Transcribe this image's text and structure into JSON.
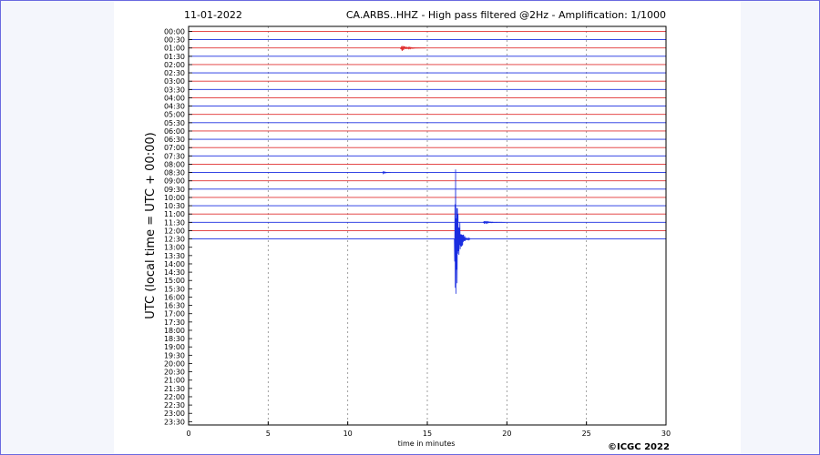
{
  "date": "11-01-2022",
  "title": "CA.ARBS..HHZ - High pass filtered @2Hz - Amplification: 1/1000",
  "ylabel": "UTC (local time = UTC + 00:00)",
  "xlabel": "time in minutes",
  "copyright": "©ICGC 2022",
  "colors": {
    "red": "#e03030",
    "blue": "#1a2de0",
    "grid": "#888888"
  },
  "chart_data": {
    "type": "line",
    "xlabel": "time in minutes",
    "ylabel": "UTC (local time = UTC + 00:00)",
    "xlim": [
      0,
      30
    ],
    "x_ticks": [
      "0",
      "5",
      "10",
      "15",
      "20",
      "25",
      "30"
    ],
    "y_ticks": [
      "00:00",
      "00:30",
      "01:00",
      "01:30",
      "02:00",
      "02:30",
      "03:00",
      "03:30",
      "04:00",
      "04:30",
      "05:00",
      "05:30",
      "06:00",
      "06:30",
      "07:00",
      "07:30",
      "08:00",
      "08:30",
      "09:00",
      "09:30",
      "10:00",
      "10:30",
      "11:00",
      "11:30",
      "12:00",
      "12:30",
      "13:00",
      "13:30",
      "14:00",
      "14:30",
      "15:00",
      "15:30",
      "16:00",
      "16:30",
      "17:00",
      "17:30",
      "18:00",
      "18:30",
      "19:00",
      "19:30",
      "20:00",
      "20:30",
      "21:00",
      "21:30",
      "22:00",
      "22:30",
      "23:00",
      "23:30"
    ],
    "traces": [
      {
        "time": "00:00",
        "color": "red",
        "events": []
      },
      {
        "time": "00:30",
        "color": "blue",
        "events": []
      },
      {
        "time": "01:00",
        "color": "red",
        "events": [
          {
            "t": 13.3,
            "dur": 1.6,
            "amp": 0.45
          }
        ]
      },
      {
        "time": "01:30",
        "color": "blue",
        "events": []
      },
      {
        "time": "02:00",
        "color": "red",
        "events": []
      },
      {
        "time": "02:30",
        "color": "blue",
        "events": []
      },
      {
        "time": "03:00",
        "color": "red",
        "events": []
      },
      {
        "time": "03:30",
        "color": "blue",
        "events": []
      },
      {
        "time": "04:00",
        "color": "red",
        "events": []
      },
      {
        "time": "04:30",
        "color": "blue",
        "events": []
      },
      {
        "time": "05:00",
        "color": "red",
        "events": []
      },
      {
        "time": "05:30",
        "color": "blue",
        "events": []
      },
      {
        "time": "06:00",
        "color": "red",
        "events": []
      },
      {
        "time": "06:30",
        "color": "blue",
        "events": []
      },
      {
        "time": "07:00",
        "color": "red",
        "events": []
      },
      {
        "time": "07:30",
        "color": "blue",
        "events": []
      },
      {
        "time": "08:00",
        "color": "red",
        "events": []
      },
      {
        "time": "08:30",
        "color": "blue",
        "events": [
          {
            "t": 12.2,
            "dur": 0.5,
            "amp": 0.2
          }
        ]
      },
      {
        "time": "09:00",
        "color": "red",
        "events": []
      },
      {
        "time": "09:30",
        "color": "blue",
        "events": []
      },
      {
        "time": "10:00",
        "color": "red",
        "events": []
      },
      {
        "time": "10:30",
        "color": "blue",
        "events": []
      },
      {
        "time": "11:00",
        "color": "red",
        "events": []
      },
      {
        "time": "11:30",
        "color": "blue",
        "events": [
          {
            "t": 18.5,
            "dur": 1.4,
            "amp": 0.2
          }
        ]
      },
      {
        "time": "12:00",
        "color": "red",
        "events": []
      },
      {
        "time": "12:30",
        "color": "blue",
        "events": [
          {
            "t": 16.7,
            "dur": 1.0,
            "amp": 10.0
          }
        ]
      }
    ]
  }
}
